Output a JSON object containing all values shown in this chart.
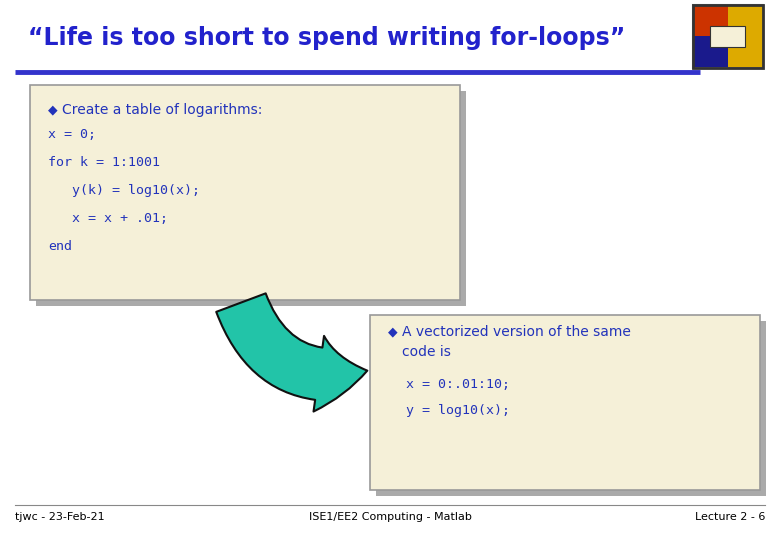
{
  "title": "“Life is too short to spend writing for-loops”",
  "title_color": "#2222cc",
  "title_fontsize": 17,
  "bg_color": "#ffffff",
  "box1_bg": "#f5f0d8",
  "box1_border": "#999999",
  "box2_bg": "#f5f0d8",
  "box2_border": "#999999",
  "bullet_color": "#2233bb",
  "bullet1_text": "Create a table of logarithms:",
  "code1_lines": [
    "x = 0;",
    "for k = 1:1001",
    "   y(k) = log10(x);",
    "   x = x + .01;",
    "end"
  ],
  "bullet2_text": "A vectorized version of the same\ncode is",
  "code2_lines": [
    "  x = 0:.01:10;",
    "  y = log10(x);"
  ],
  "arrow_color": "#22c4a8",
  "arrow_border": "#111111",
  "footer_left": "tjwc - 23-Feb-21",
  "footer_center": "ISE1/EE2 Computing - Matlab",
  "footer_right": "Lecture 2 - 6",
  "footer_color": "#000000",
  "footer_fontsize": 8,
  "divider_color": "#3333cc",
  "code_color": "#2233bb",
  "code_fontsize": 9.5,
  "bullet_fontsize": 10,
  "text_fontsize": 10
}
